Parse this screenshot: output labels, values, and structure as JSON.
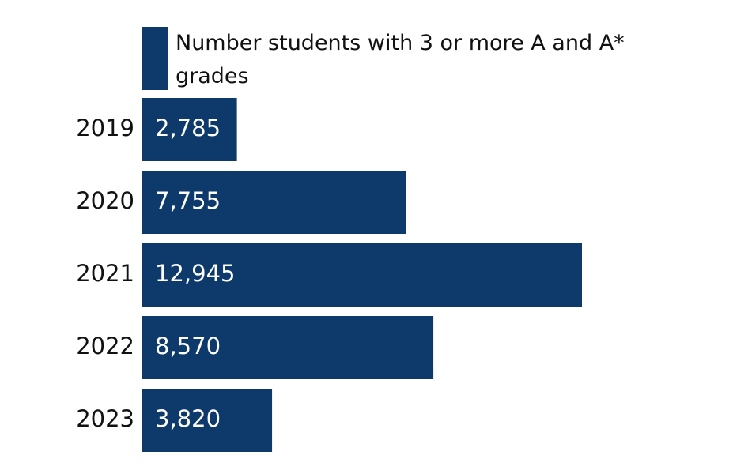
{
  "chart_data": {
    "type": "barh",
    "categories": [
      "2019",
      "2020",
      "2021",
      "2022",
      "2023"
    ],
    "series": [
      {
        "name": "Number students with 3 or more A and A* grades",
        "color": "#0e3a6b",
        "values": [
          2785,
          7755,
          12945,
          8570,
          3820
        ],
        "value_labels": [
          "2,785",
          "7,755",
          "12,945",
          "8,570",
          "3,820"
        ]
      }
    ]
  }
}
